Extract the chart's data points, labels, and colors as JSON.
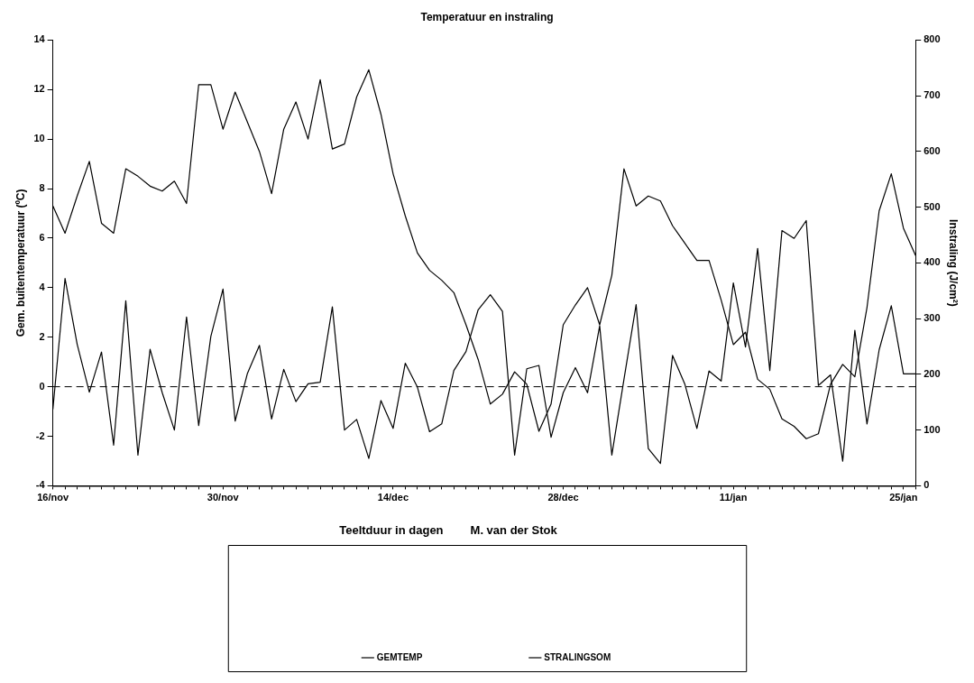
{
  "chart_data": {
    "type": "line",
    "title": "Temperatuur en instraling",
    "xlabel": "Teeltduur in dagen",
    "ylabel": "Gem. buitentemperatuur (ºC)",
    "y2label": "Instraling (J/cm²)",
    "annotations": [
      "M. van der Stok"
    ],
    "categories": [
      "16/nov",
      null,
      null,
      null,
      null,
      null,
      null,
      null,
      null,
      null,
      null,
      null,
      null,
      null,
      "30/nov",
      null,
      null,
      null,
      null,
      null,
      null,
      null,
      null,
      null,
      null,
      null,
      null,
      null,
      "14/dec",
      null,
      null,
      null,
      null,
      null,
      null,
      null,
      null,
      null,
      null,
      null,
      null,
      null,
      "28/dec",
      null,
      null,
      null,
      null,
      null,
      null,
      null,
      null,
      null,
      null,
      null,
      null,
      null,
      "11/jan",
      null,
      null,
      null,
      null,
      null,
      null,
      null,
      null,
      null,
      null,
      null,
      null,
      null,
      "25/jan",
      null
    ],
    "series": [
      {
        "name": "GEMTEMP",
        "color": "#000000",
        "values": [
          7.3,
          6.2,
          7.7,
          9.1,
          6.6,
          6.2,
          8.8,
          8.5,
          8.1,
          7.9,
          8.3,
          7.4,
          12.2,
          12.2,
          10.4,
          11.9,
          10.7,
          9.5,
          7.8,
          10.4,
          11.5,
          10.0,
          12.4,
          9.6,
          9.8,
          11.7,
          12.8,
          11.0,
          8.6,
          6.9,
          5.4,
          4.7,
          4.3,
          3.8,
          2.5,
          1.1,
          -0.7,
          -0.3,
          0.6,
          0.1,
          -1.8,
          -0.7,
          2.5,
          3.3,
          4.0,
          2.5,
          4.5,
          8.8,
          7.3,
          7.7,
          7.5,
          6.5,
          5.8,
          5.1,
          5.1,
          3.5,
          1.7,
          2.2,
          0.3,
          -0.1,
          -1.3,
          -1.6,
          -2.1,
          -1.9,
          0.1,
          0.9,
          0.4,
          3.2,
          7.1,
          8.6,
          6.4,
          5.3
        ]
      },
      {
        "name": "STRALINGSOM",
        "color": "#000000",
        "axis": "y2",
        "values": [
          137,
          372,
          254,
          168,
          240,
          73,
          332,
          55,
          245,
          167,
          100,
          303,
          108,
          268,
          353,
          116,
          201,
          252,
          120,
          209,
          151,
          183,
          186,
          321,
          100,
          119,
          49,
          153,
          103,
          220,
          177,
          97,
          111,
          207,
          241,
          316,
          343,
          313,
          55,
          210,
          216,
          87,
          167,
          212,
          167,
          287,
          55,
          191,
          325,
          67,
          40,
          234,
          183,
          103,
          206,
          188,
          364,
          249,
          426,
          207,
          458,
          444,
          476,
          180,
          199,
          44,
          279,
          111,
          244,
          323,
          201,
          201
        ]
      }
    ],
    "ylim": [
      -4,
      14
    ],
    "yticks": [
      -4,
      -2,
      0,
      2,
      4,
      6,
      8,
      10,
      12,
      14
    ],
    "y2lim": [
      0,
      800
    ],
    "y2ticks": [
      0,
      100,
      200,
      300,
      400,
      500,
      600,
      700,
      800
    ],
    "ref_lines": [
      {
        "axis": "y",
        "value": 0,
        "line_style": "dashed",
        "color": "#000000"
      }
    ],
    "grid": false,
    "legend": "bottom",
    "marker": "none",
    "line_style": "solid"
  }
}
